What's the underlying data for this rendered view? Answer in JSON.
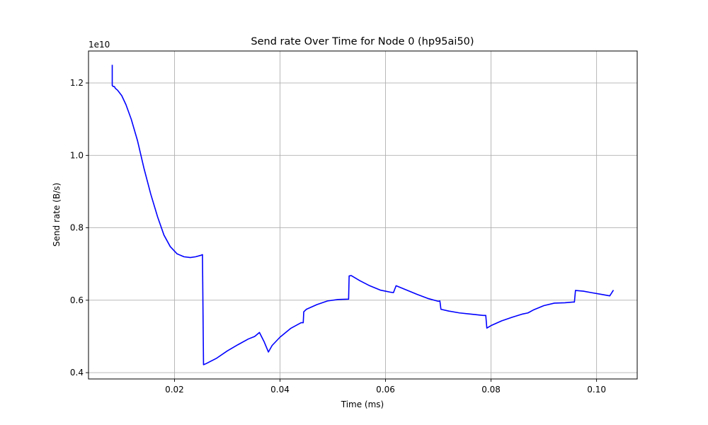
{
  "chart_data": {
    "type": "line",
    "title": "Send rate Over Time for Node 0 (hp95ai50)",
    "xlabel": "Time (ms)",
    "ylabel": "Send rate (B/s)",
    "offset_label": "1e10",
    "xlim": [
      0.0037,
      0.1077
    ],
    "ylim": [
      0.3826,
      1.2882
    ],
    "x_ticks": [
      0.02,
      0.04,
      0.06,
      0.08,
      0.1
    ],
    "x_tick_labels": [
      "0.02",
      "0.04",
      "0.06",
      "0.08",
      "0.10"
    ],
    "y_ticks": [
      0.4,
      0.6,
      0.8,
      1.0,
      1.2
    ],
    "y_tick_labels": [
      "0.4",
      "0.6",
      "0.8",
      "1.0",
      "1.2"
    ],
    "grid": true,
    "line_color": "#0000ff",
    "series": [
      {
        "x": [
          0.0082,
          0.0082,
          0.0084,
          0.0086,
          0.0088,
          0.0092,
          0.01,
          0.0108,
          0.0118,
          0.013,
          0.0142,
          0.0155,
          0.0168,
          0.018,
          0.0192,
          0.0205,
          0.0218,
          0.023,
          0.024,
          0.025,
          0.0253,
          0.0255,
          0.026,
          0.028,
          0.03,
          0.032,
          0.034,
          0.0352,
          0.0361,
          0.037,
          0.0378,
          0.0385,
          0.04,
          0.042,
          0.044,
          0.0444,
          0.0445,
          0.045,
          0.047,
          0.049,
          0.051,
          0.053,
          0.0531,
          0.0535,
          0.055,
          0.057,
          0.059,
          0.06,
          0.061,
          0.0615,
          0.062,
          0.064,
          0.066,
          0.068,
          0.07,
          0.0703,
          0.0705,
          0.072,
          0.074,
          0.076,
          0.0785,
          0.079,
          0.0792,
          0.08,
          0.082,
          0.084,
          0.086,
          0.087,
          0.088,
          0.09,
          0.092,
          0.094,
          0.0955,
          0.0958,
          0.096,
          0.0975,
          0.099,
          0.101,
          0.1025,
          0.1032
        ],
        "y": [
          1.25,
          1.193,
          1.19,
          1.19,
          1.185,
          1.18,
          1.165,
          1.14,
          1.1,
          1.04,
          0.965,
          0.893,
          0.83,
          0.78,
          0.748,
          0.728,
          0.72,
          0.718,
          0.72,
          0.724,
          0.726,
          0.422,
          0.425,
          0.44,
          0.46,
          0.477,
          0.493,
          0.5,
          0.511,
          0.485,
          0.457,
          0.475,
          0.498,
          0.522,
          0.538,
          0.538,
          0.568,
          0.575,
          0.588,
          0.598,
          0.602,
          0.603,
          0.667,
          0.668,
          0.655,
          0.64,
          0.628,
          0.625,
          0.622,
          0.621,
          0.64,
          0.628,
          0.616,
          0.605,
          0.597,
          0.598,
          0.575,
          0.57,
          0.565,
          0.562,
          0.558,
          0.558,
          0.523,
          0.53,
          0.543,
          0.553,
          0.562,
          0.565,
          0.573,
          0.585,
          0.592,
          0.593,
          0.595,
          0.595,
          0.627,
          0.625,
          0.621,
          0.616,
          0.612,
          0.628
        ]
      }
    ]
  }
}
